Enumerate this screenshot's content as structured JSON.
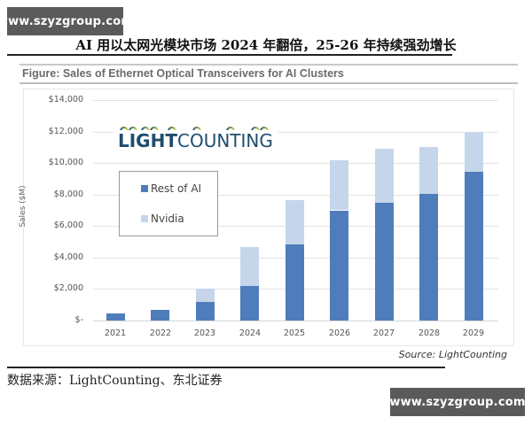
{
  "watermarks": {
    "top": "www.szyzgroup.com",
    "bottom": "www.szyzgroup.com"
  },
  "document": {
    "title": "AI 用以太网光模块市场 2024 年翻倍，25-26 年持续强劲增长",
    "data_source": "数据来源：LightCounting、东北证券"
  },
  "figure": {
    "title": "Figure: Sales of Ethernet Optical Transceivers for AI Clusters",
    "source": "Source: LightCounting",
    "logo": {
      "text_bold": "LIGHT",
      "text_regular": "COUNTING"
    }
  },
  "colors": {
    "rest_of_ai": "#4f7dbb",
    "nvidia": "#c5d6eb"
  },
  "chart_data": {
    "type": "bar",
    "stacked": true,
    "title": "Figure: Sales of Ethernet Optical Transceivers for AI Clusters",
    "xlabel": "",
    "ylabel": "Sales ($M)",
    "ylim": [
      0,
      14000
    ],
    "yticks": [
      "$-",
      "$2,000",
      "$4,000",
      "$6,000",
      "$8,000",
      "$10,000",
      "$12,000",
      "$14,000"
    ],
    "grid": true,
    "legend_position": "upper-left (inside plot)",
    "categories": [
      "2021",
      "2022",
      "2023",
      "2024",
      "2025",
      "2026",
      "2027",
      "2028",
      "2029"
    ],
    "series": [
      {
        "name": "Rest of AI",
        "color": "#4f7dbb",
        "values": [
          450,
          700,
          1200,
          2200,
          4850,
          7000,
          7450,
          8050,
          9450
        ]
      },
      {
        "name": "Nvidia",
        "color": "#c5d6eb",
        "values": [
          0,
          0,
          850,
          2450,
          2800,
          3200,
          3450,
          2950,
          2500
        ]
      }
    ],
    "totals": [
      450,
      700,
      2050,
      4650,
      7650,
      10200,
      10900,
      11000,
      11950
    ],
    "source": "Source: LightCounting"
  },
  "legend": {
    "items": [
      {
        "label": "Rest of AI"
      },
      {
        "label": "Nvidia"
      }
    ]
  }
}
